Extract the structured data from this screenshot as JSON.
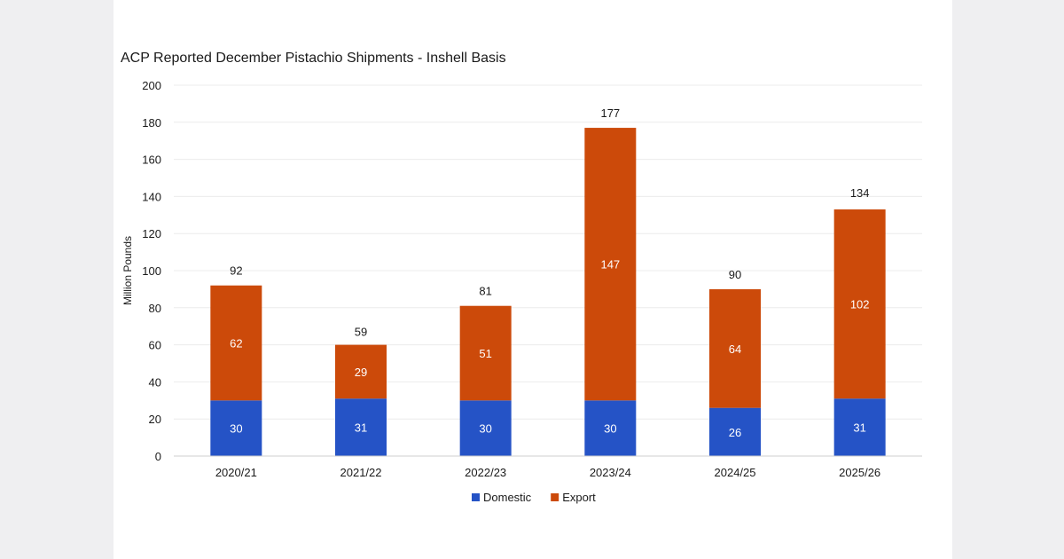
{
  "chart_data": {
    "type": "bar",
    "stacked": true,
    "title": "ACP Reported December Pistachio Shipments - Inshell Basis",
    "xlabel": "",
    "ylabel": "Million Pounds",
    "ylim": [
      0,
      200
    ],
    "yticks": [
      0,
      20,
      40,
      60,
      80,
      100,
      120,
      140,
      160,
      180,
      200
    ],
    "grid": true,
    "legend": "bottom-center",
    "categories": [
      "2020/21",
      "2021/22",
      "2022/23",
      "2023/24",
      "2024/25",
      "2025/26"
    ],
    "series": [
      {
        "name": "Domestic",
        "color": "#2553c6",
        "values": [
          30,
          31,
          30,
          30,
          26,
          31
        ]
      },
      {
        "name": "Export",
        "color": "#cc4a0a",
        "values": [
          62,
          29,
          51,
          147,
          64,
          102
        ]
      }
    ],
    "totals": [
      92,
      59,
      81,
      177,
      90,
      134
    ]
  }
}
